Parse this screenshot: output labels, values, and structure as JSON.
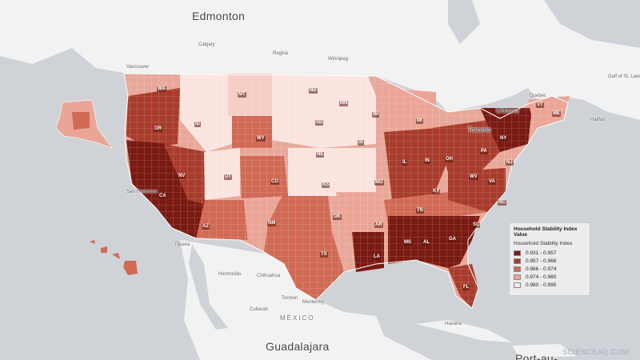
{
  "map": {
    "background_land": "#f2f2f2",
    "background_water": "#cfd3d8",
    "places": [
      {
        "name": "Edmonton",
        "size": "big"
      },
      {
        "name": "Calgary",
        "size": "sm"
      },
      {
        "name": "Regina",
        "size": "sm"
      },
      {
        "name": "Winnipeg",
        "size": "sm"
      },
      {
        "name": "Vancouver",
        "size": "sm"
      },
      {
        "name": "Ottawa",
        "size": "med"
      },
      {
        "name": "Toronto",
        "size": "med"
      },
      {
        "name": "Quebec",
        "size": "sm"
      },
      {
        "name": "Halifax",
        "size": "sm"
      },
      {
        "name": "Gulf of St. Lawrence",
        "size": "sm"
      },
      {
        "name": "San Francisco",
        "size": "sm"
      },
      {
        "name": "Tijuana",
        "size": "sm"
      },
      {
        "name": "Hermosillo",
        "size": "sm"
      },
      {
        "name": "Chihuahua",
        "size": "sm"
      },
      {
        "name": "Culiacán",
        "size": "sm"
      },
      {
        "name": "Torreón",
        "size": "sm"
      },
      {
        "name": "Monterrey",
        "size": "sm"
      },
      {
        "name": "MÉXICO",
        "size": "country"
      },
      {
        "name": "Guadalajara",
        "size": "big"
      },
      {
        "name": "Havana",
        "size": "sm"
      },
      {
        "name": "Port-au-",
        "size": "big"
      }
    ],
    "state_labels": [
      "WA",
      "MT",
      "ND",
      "MN",
      "OR",
      "ID",
      "WY",
      "SD",
      "WI",
      "MI",
      "NY",
      "ME",
      "VT",
      "NE",
      "IA",
      "NV",
      "UT",
      "CO",
      "KS",
      "MO",
      "IL",
      "IN",
      "OH",
      "PA",
      "NJ",
      "CA",
      "AZ",
      "NM",
      "OK",
      "AR",
      "TN",
      "KY",
      "WV",
      "VA",
      "NC",
      "TX",
      "LA",
      "MS",
      "AL",
      "GA",
      "SC",
      "FL"
    ]
  },
  "legend": {
    "title": "Household Stability Index Value",
    "subtitle": "Household Stability Index",
    "classes": [
      {
        "label": "0.931 - 0.957",
        "color": "#7a1a12"
      },
      {
        "label": "0.957 - 0.966",
        "color": "#a83c2c"
      },
      {
        "label": "0.966 - 0.974",
        "color": "#d06a55"
      },
      {
        "label": "0.974 - 0.980",
        "color": "#eba596"
      },
      {
        "label": "0.980 - 0.995",
        "color": "#fbe4e0"
      }
    ]
  },
  "watermark": "SCIENCEAQ.COM"
}
